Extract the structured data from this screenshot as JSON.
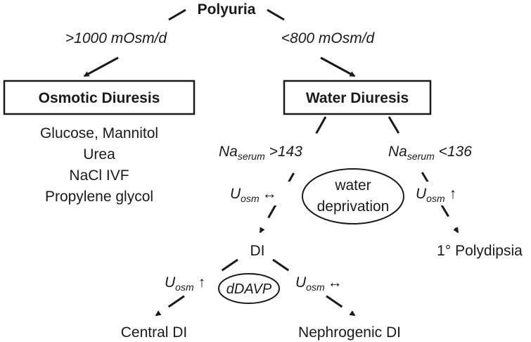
{
  "root": {
    "label": "Polyuria"
  },
  "branches": {
    "left": {
      "condition": ">1000 mOsm/d"
    },
    "right": {
      "condition": "<800 mOsm/d"
    }
  },
  "osmotic": {
    "title": "Osmotic Diuresis",
    "causes": [
      "Glucose, Mannitol",
      "Urea",
      "NaCl IVF",
      "Propylene glycol"
    ]
  },
  "water": {
    "title": "Water Diuresis",
    "left_condition": {
      "base": "Na",
      "sub": "serum",
      "rest": " >143"
    },
    "right_condition": {
      "base": "Na",
      "sub": "serum",
      "rest": " <136"
    },
    "left_uosm": {
      "base": "U",
      "sub": "osm",
      "symbol": "↔"
    },
    "right_uosm": {
      "base": "U",
      "sub": "osm",
      "symbol": "↑"
    },
    "test": {
      "line1": "water",
      "line2": "deprivation"
    }
  },
  "di": {
    "label": "DI",
    "test": "dDAVP",
    "left_uosm": {
      "base": "U",
      "sub": "osm",
      "symbol": "↑"
    },
    "right_uosm": {
      "base": "U",
      "sub": "osm",
      "symbol": "↔"
    },
    "central": "Central DI",
    "nephrogenic": "Nephrogenic DI"
  },
  "polydipsia": "1° Polydipsia"
}
